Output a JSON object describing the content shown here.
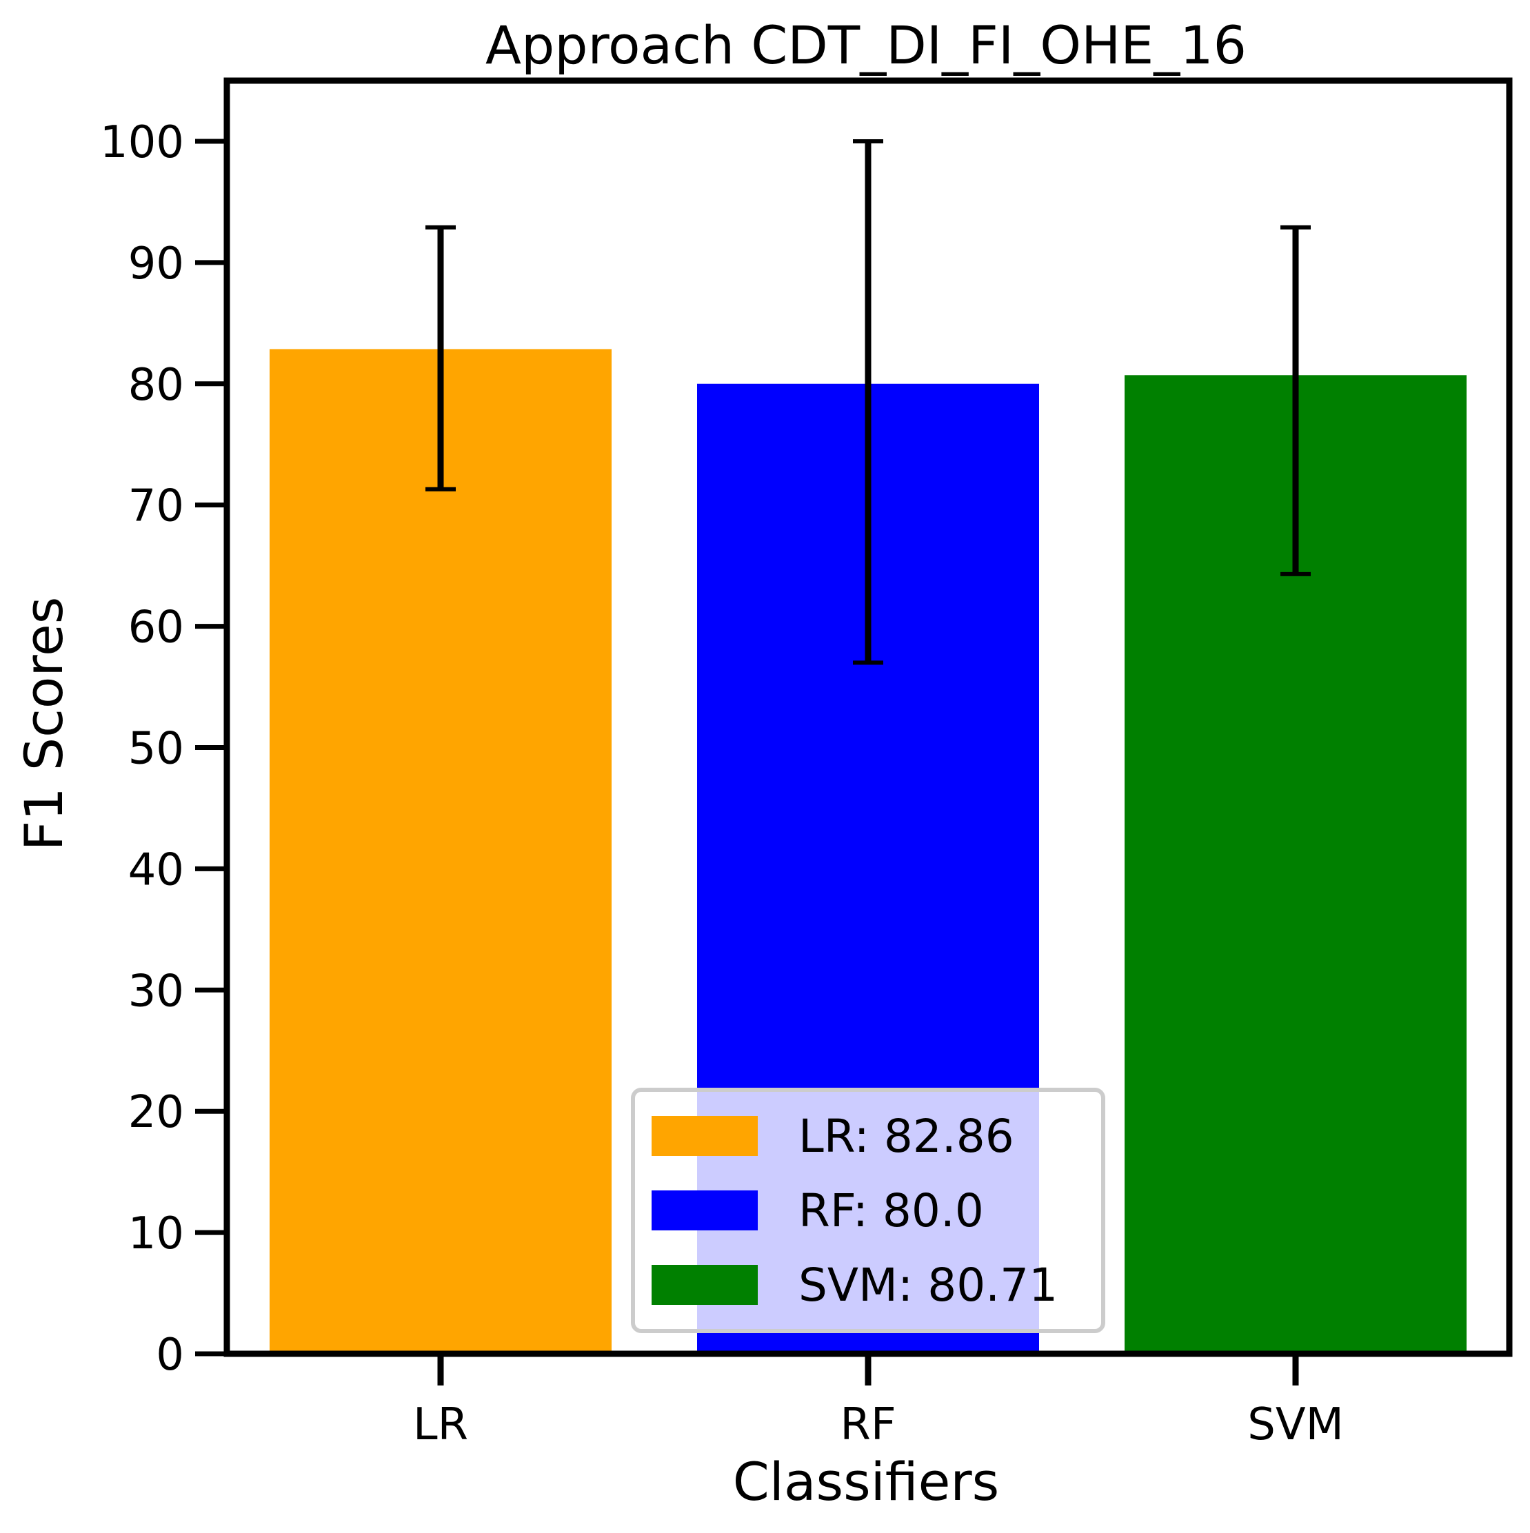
{
  "chart_data": {
    "type": "bar",
    "title": "Approach CDT_DI_FI_OHE_16",
    "xlabel": "Classifiers",
    "ylabel": "F1 Scores",
    "categories": [
      "LR",
      "RF",
      "SVM"
    ],
    "values": [
      82.86,
      80.0,
      80.71
    ],
    "error_low": [
      71.3,
      57.0,
      64.3
    ],
    "error_high": [
      92.9,
      100.0,
      92.9
    ],
    "colors": [
      "#ffa500",
      "#0000ff",
      "#008000"
    ],
    "ylim": [
      0,
      105
    ],
    "yticks": [
      0,
      10,
      20,
      30,
      40,
      50,
      60,
      70,
      80,
      90,
      100
    ],
    "grid": false,
    "legend": {
      "position": "lower-center",
      "entries": [
        "LR: 82.86",
        "RF: 80.0",
        "SVM: 80.71"
      ]
    }
  }
}
